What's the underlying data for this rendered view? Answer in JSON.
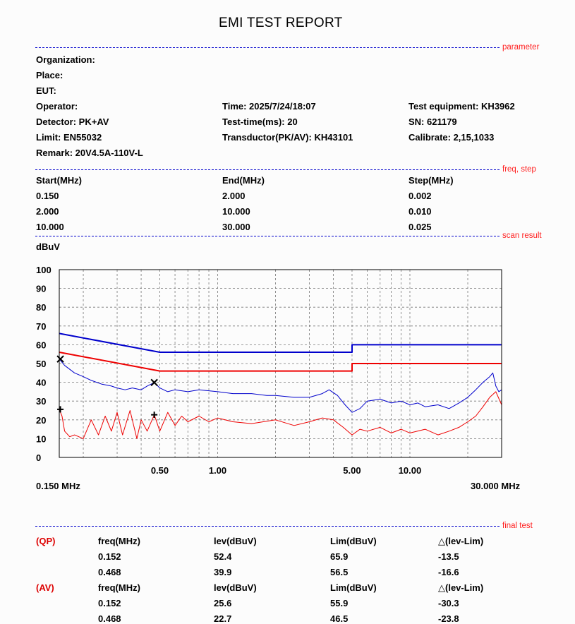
{
  "report_title": "EMI TEST REPORT",
  "sections": {
    "parameter": "parameter",
    "freq_step": "freq, step",
    "scan_result": "scan result",
    "final_test": "final test"
  },
  "info": {
    "organization": "Organization:",
    "place": "Place:",
    "eut": "EUT:",
    "operator": "Operator:",
    "detector": "Detector:  PK+AV",
    "limit": "Limit:  EN55032",
    "remark": "Remark:  20V4.5A-110V-L",
    "time": "Time:   2025/7/24/18:07",
    "test_time": "Test-time(ms):  20",
    "transductor": "Transductor(PK/AV):  KH43101",
    "test_equipment": "Test equipment:  KH3962",
    "sn": "SN:  621179",
    "calibrate": "Calibrate:  2,15,1033"
  },
  "freq_table": {
    "headers": [
      "Start(MHz)",
      "End(MHz)",
      "Step(MHz)"
    ],
    "rows": [
      [
        "0.150",
        "2.000",
        "0.002"
      ],
      [
        "2.000",
        "10.000",
        "0.010"
      ],
      [
        "10.000",
        "30.000",
        "0.025"
      ]
    ]
  },
  "chart_data": {
    "type": "line",
    "ylabel": "dBuV",
    "ylim": [
      0,
      100
    ],
    "yticks": [
      "100",
      "90",
      "80",
      "70",
      "60",
      "50",
      "40",
      "30",
      "20",
      "10",
      "0"
    ],
    "xscale": "log",
    "xlim": [
      0.15,
      30
    ],
    "xticks": [
      {
        "value": 0.5,
        "label": "0.50"
      },
      {
        "value": 1,
        "label": "1.00"
      },
      {
        "value": 5,
        "label": "5.00"
      },
      {
        "value": 10,
        "label": "10.00"
      }
    ],
    "x_start_label": "0.150 MHz",
    "x_end_label": "30.000 MHz",
    "grid": true,
    "series": [
      {
        "color": "#0000cc",
        "x": [
          0.15,
          0.5,
          0.5,
          5,
          5,
          30
        ],
        "y": [
          66,
          56,
          56,
          56,
          60,
          60
        ]
      },
      {
        "color": "#ee0000",
        "x": [
          0.15,
          0.5,
          0.5,
          5,
          5,
          30
        ],
        "y": [
          56,
          46,
          46,
          46,
          50,
          50
        ]
      },
      {
        "color": "#0000cc",
        "x": [
          0.15,
          0.16,
          0.18,
          0.2,
          0.22,
          0.25,
          0.28,
          0.3,
          0.33,
          0.36,
          0.4,
          0.43,
          0.468,
          0.5,
          0.55,
          0.6,
          0.7,
          0.8,
          1.0,
          1.2,
          1.5,
          1.8,
          2.0,
          2.5,
          3.0,
          3.5,
          3.8,
          4.2,
          4.6,
          5.0,
          5.5,
          6.0,
          7.0,
          8.0,
          9.0,
          10.0,
          11.0,
          12.0,
          14.0,
          16.0,
          18.0,
          20.0,
          22.0,
          24.0,
          26.0,
          27.0,
          28.0,
          29.0,
          30.0
        ],
        "y": [
          52.4,
          49,
          45,
          43,
          41,
          39,
          38,
          37,
          36,
          37,
          36,
          38,
          39.9,
          37,
          35,
          36,
          35,
          36,
          35,
          34,
          34,
          33,
          33,
          32,
          32,
          34,
          36,
          33,
          28,
          24,
          26,
          30,
          31,
          29,
          30,
          28,
          29,
          27,
          28,
          26,
          29,
          32,
          36,
          40,
          43,
          45,
          38,
          35,
          36
        ]
      },
      {
        "color": "#ee0000",
        "x": [
          0.15,
          0.155,
          0.16,
          0.17,
          0.18,
          0.2,
          0.22,
          0.24,
          0.26,
          0.28,
          0.3,
          0.32,
          0.35,
          0.38,
          0.4,
          0.43,
          0.468,
          0.5,
          0.55,
          0.6,
          0.65,
          0.7,
          0.8,
          0.9,
          1.0,
          1.2,
          1.5,
          2.0,
          2.5,
          3.0,
          3.5,
          4.0,
          4.5,
          5.0,
          5.5,
          6.0,
          7.0,
          8.0,
          9.0,
          10.0,
          12.0,
          14.0,
          16.0,
          18.0,
          20.0,
          22.0,
          24.0,
          26.0,
          28.0,
          30.0
        ],
        "y": [
          25.6,
          22,
          14,
          11,
          12,
          10,
          20,
          12,
          22,
          14,
          24,
          12,
          25,
          10,
          20,
          14,
          22.7,
          14,
          24,
          17,
          22,
          19,
          22,
          19,
          21,
          19,
          18,
          20,
          17,
          19,
          21,
          20,
          16,
          12,
          15,
          14,
          16,
          13,
          15,
          13,
          15,
          12,
          14,
          16,
          19,
          22,
          27,
          32,
          35,
          28
        ]
      }
    ],
    "markers": [
      {
        "symbol": "x",
        "x": 0.152,
        "y": 52.4
      },
      {
        "symbol": "x",
        "x": 0.468,
        "y": 39.9
      },
      {
        "symbol": "+",
        "x": 0.152,
        "y": 25.6
      },
      {
        "symbol": "+",
        "x": 0.468,
        "y": 22.7
      }
    ]
  },
  "final_test": {
    "qp": {
      "tag": "(QP)",
      "headers": [
        "freq(MHz)",
        "lev(dBuV)",
        "Lim(dBuV)",
        "△(lev-Lim)"
      ],
      "rows": [
        [
          "0.152",
          "52.4",
          "65.9",
          "-13.5"
        ],
        [
          "0.468",
          "39.9",
          "56.5",
          "-16.6"
        ]
      ]
    },
    "av": {
      "tag": "(AV)",
      "headers": [
        "freq(MHz)",
        "lev(dBuV)",
        "Lim(dBuV)",
        "△(lev-Lim)"
      ],
      "rows": [
        [
          "0.152",
          "25.6",
          "55.9",
          "-30.3"
        ],
        [
          "0.468",
          "22.7",
          "46.5",
          "-23.8"
        ]
      ]
    }
  }
}
